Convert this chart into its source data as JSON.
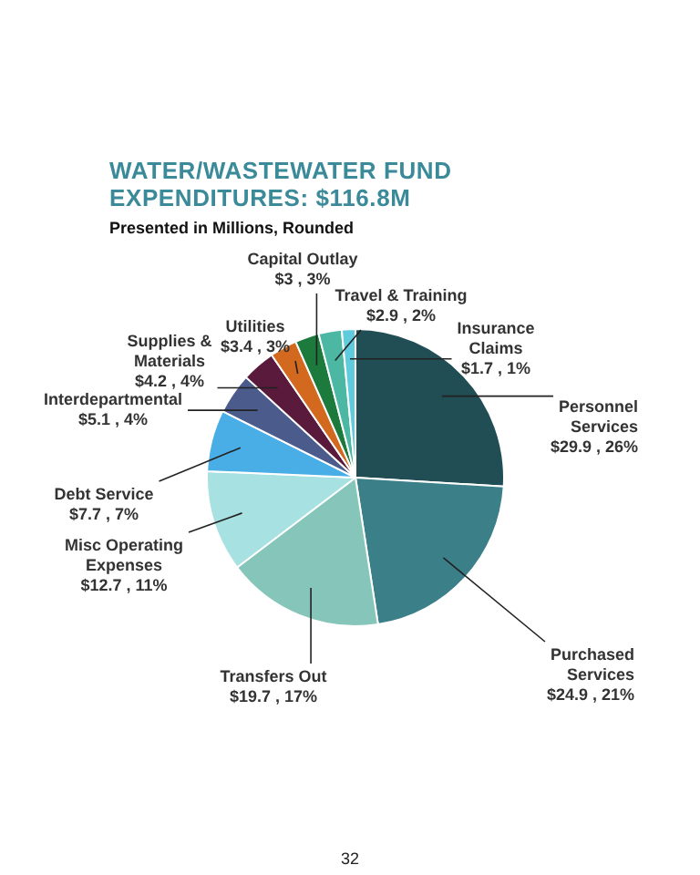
{
  "chart_data": {
    "type": "pie",
    "title": "WATER/WASTEWATER FUND EXPENDITURES: $116.8M",
    "subtitle": "Presented in Millions, Rounded",
    "categories": [
      "Personnel Services",
      "Purchased Services",
      "Transfers Out",
      "Misc Operating Expenses",
      "Debt Service",
      "Interdepartmental",
      "Supplies & Materials",
      "Utilities",
      "Capital Outlay",
      "Travel & Training",
      "Insurance Claims"
    ],
    "values": [
      29.9,
      24.9,
      19.7,
      12.7,
      7.7,
      5.1,
      4.2,
      3.4,
      3,
      2.9,
      1.7
    ],
    "value_labels": [
      "$29.9 , 26%",
      "$24.9 , 21%",
      "$19.7 , 17%",
      "$12.7 , 11%",
      "$7.7 , 7%",
      "$5.1 , 4%",
      "$4.2 , 4%",
      "$3.4 , 3%",
      "$3 , 3%",
      "$2.9 , 2%",
      "$1.7 , 1%"
    ],
    "colors": [
      "#214e55",
      "#3b8088",
      "#86c6ba",
      "#a8e1e2",
      "#4aaee6",
      "#4b5c8c",
      "#5a1a3c",
      "#d2691e",
      "#1b7a3c",
      "#4cb8a3",
      "#5fcbdc"
    ],
    "legend": false,
    "annotations": [
      "32"
    ]
  }
}
